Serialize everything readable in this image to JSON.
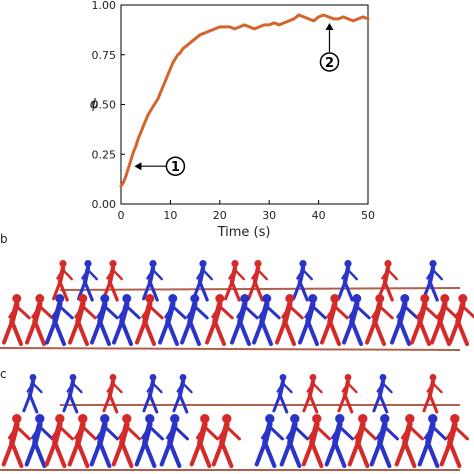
{
  "chart_data": {
    "type": "line",
    "xlabel": "Time (s)",
    "ylabel": "ϕ",
    "xlim": [
      0,
      50
    ],
    "ylim": [
      0,
      1.0
    ],
    "x_ticks": [
      0,
      10,
      20,
      30,
      40,
      50
    ],
    "x_tick_labels": [
      "0",
      "10",
      "20",
      "30",
      "40",
      "50"
    ],
    "y_ticks": [
      0,
      0.25,
      0.5,
      0.75,
      1.0
    ],
    "y_tick_labels": [
      "0.00",
      "0.25",
      "0.50",
      "0.75",
      "1.00"
    ],
    "grid": false,
    "series": [
      {
        "color": "#d4642a",
        "x": [
          0,
          0.5,
          1,
          1.5,
          2,
          2.5,
          3,
          3.5,
          4,
          4.5,
          5,
          5.5,
          6,
          6.5,
          7,
          7.5,
          8,
          8.5,
          9,
          9.5,
          10,
          10.5,
          11,
          11.5,
          12,
          12.5,
          13,
          13.5,
          14,
          14.5,
          15,
          16,
          17,
          18,
          19,
          20,
          21,
          22,
          23,
          24,
          25,
          26,
          27,
          28,
          29,
          30,
          31,
          32,
          33,
          34,
          35,
          36,
          37,
          38,
          39,
          40,
          41,
          42,
          43,
          44,
          45,
          46,
          47,
          48,
          49,
          50
        ],
        "y": [
          0.09,
          0.11,
          0.14,
          0.18,
          0.22,
          0.26,
          0.29,
          0.33,
          0.36,
          0.39,
          0.42,
          0.45,
          0.47,
          0.49,
          0.51,
          0.53,
          0.56,
          0.59,
          0.62,
          0.65,
          0.68,
          0.71,
          0.73,
          0.75,
          0.76,
          0.78,
          0.79,
          0.8,
          0.81,
          0.82,
          0.83,
          0.85,
          0.86,
          0.87,
          0.88,
          0.89,
          0.89,
          0.89,
          0.88,
          0.89,
          0.9,
          0.89,
          0.88,
          0.89,
          0.9,
          0.9,
          0.91,
          0.9,
          0.91,
          0.92,
          0.93,
          0.95,
          0.94,
          0.93,
          0.92,
          0.94,
          0.95,
          0.94,
          0.93,
          0.93,
          0.94,
          0.93,
          0.92,
          0.93,
          0.94,
          0.93
        ]
      }
    ],
    "annotations": [
      {
        "label": "1",
        "x": 1.5,
        "y": 0.19
      },
      {
        "label": "2",
        "x": 42,
        "y": 0.94
      }
    ]
  },
  "panels": {
    "panel_b_letter": "b",
    "panel_c_letter": "c"
  },
  "colors": {
    "agent_red": "#d42a2a",
    "agent_blue": "#2a35c8",
    "floor_line": "#b0604a"
  }
}
